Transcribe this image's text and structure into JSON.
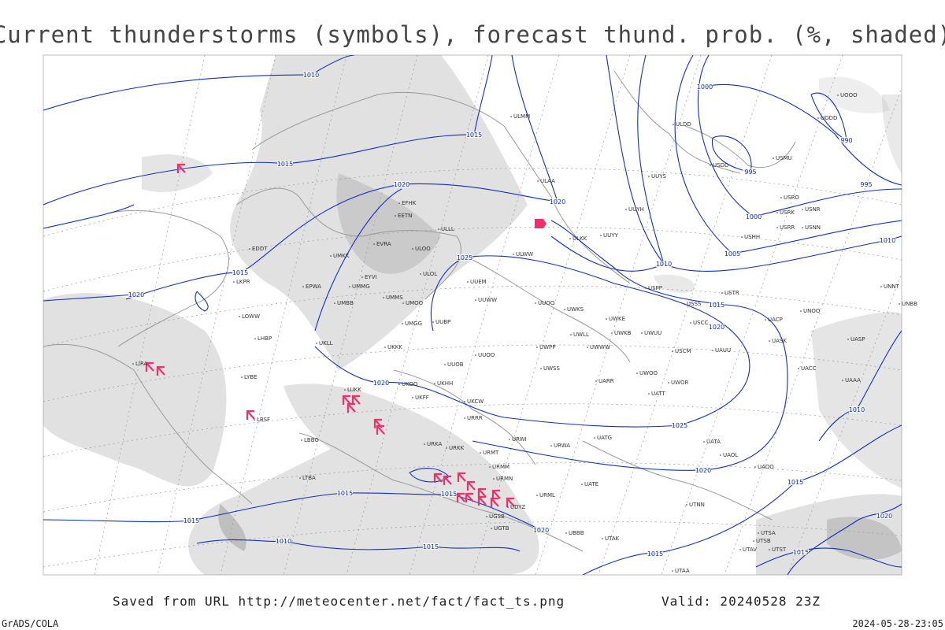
{
  "title": "Current thunderstorms (symbols), forecast thund. prob. (%, shaded)",
  "footer": {
    "source": "Saved from URL http://meteocenter.net/fact/fact_ts.png",
    "valid": "Valid: 20240528 23Z",
    "software": "GrADS/COLA",
    "timestamp": "2024-05-28-23:05"
  },
  "isobar_labels": [
    "1010",
    "1015",
    "1015",
    "1020",
    "1020",
    "1000",
    "990",
    "995",
    "995",
    "1000",
    "1005",
    "1010",
    "1010",
    "1015",
    "1020",
    "1025",
    "1015",
    "1020",
    "1020",
    "1025",
    "1020",
    "1015",
    "1015",
    "1015",
    "1015",
    "1010",
    "1015",
    "1020",
    "1015",
    "1010",
    "1020",
    "1015"
  ],
  "stations": [
    "ULMM",
    "ULAA",
    "ULKK",
    "ULWW",
    "ULLL",
    "EFHK",
    "EETN",
    "EVRA",
    "ULOO",
    "UMKK",
    "EYVI",
    "UMMG",
    "EPWA",
    "UMBB",
    "UMMS",
    "UMOO",
    "ULOL",
    "UUEM",
    "UUWW",
    "UUOO",
    "UWKS",
    "UUBP",
    "UMGG",
    "UKLL",
    "LOWW",
    "LHBP",
    "LIRA",
    "UKKK",
    "UUOB",
    "UUOO",
    "UWPP",
    "UWLL",
    "UWKE",
    "UWKB",
    "UWUU",
    "UWWW",
    "USCM",
    "UAUU",
    "UASK",
    "UACC",
    "UASP",
    "UACP",
    "UNOO",
    "USTR",
    "USSS",
    "USCC",
    "USPP",
    "UNNT",
    "UNBB",
    "UWSS",
    "UWOO",
    "UARR",
    "UWOR",
    "UATT",
    "UAAA",
    "LYBE",
    "LUKK",
    "UKOO",
    "UKHH",
    "UKFF",
    "UKCW",
    "URRR",
    "LBSF",
    "URKA",
    "URKK",
    "URMT",
    "URWI",
    "URWA",
    "UATG",
    "UATA",
    "UAOL",
    "UAOO",
    "UATE",
    "URMM",
    "URMN",
    "URML",
    "UTNN",
    "LBBG",
    "UBBB",
    "UGSB",
    "UGTB",
    "UDYZ",
    "LTBA",
    "UTAK",
    "UTSA",
    "UTSB",
    "UTAV",
    "UTST",
    "UTAA",
    "UUYH",
    "UUYY",
    "ULDD",
    "UUYS",
    "USDD",
    "USMU",
    "USRO",
    "USRK",
    "USNR",
    "USRR",
    "USNN",
    "USHH",
    "UODD",
    "UOOO",
    "LKPR",
    "EDDT"
  ]
}
